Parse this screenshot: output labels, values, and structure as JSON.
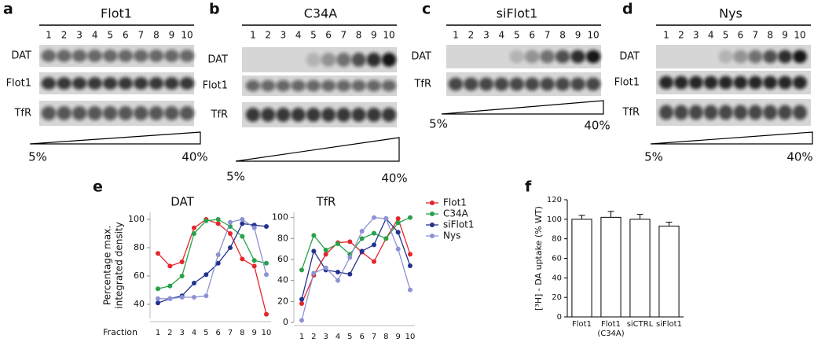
{
  "blots": [
    {
      "letter": "a",
      "title": "Flot1",
      "lanes": [
        1,
        2,
        3,
        4,
        5,
        6,
        7,
        8,
        9,
        10
      ],
      "rows": [
        "DAT",
        "Flot1",
        "TfR"
      ],
      "gradient_start": "5%",
      "gradient_end": "40%"
    },
    {
      "letter": "b",
      "title": "C34A",
      "lanes": [
        1,
        2,
        3,
        4,
        5,
        6,
        7,
        8,
        9,
        10
      ],
      "rows": [
        "DAT",
        "Flot1",
        "TfR"
      ],
      "gradient_start": "5%",
      "gradient_end": "40%"
    },
    {
      "letter": "c",
      "title": "siFlot1",
      "lanes": [
        1,
        2,
        3,
        4,
        5,
        6,
        7,
        8,
        9,
        10
      ],
      "rows": [
        "DAT",
        "TfR"
      ],
      "gradient_start": "5%",
      "gradient_end": "40%"
    },
    {
      "letter": "d",
      "title": "Nys",
      "lanes": [
        1,
        2,
        3,
        4,
        5,
        6,
        7,
        8,
        9,
        10
      ],
      "rows": [
        "DAT",
        "Flot1",
        "TfR"
      ],
      "gradient_start": "5%",
      "gradient_end": "40%"
    }
  ],
  "chart_data": [
    {
      "type": "line",
      "panel": "e",
      "title": "DAT",
      "x_label": "Fraction",
      "y_label": [
        "Percentage max.",
        "integrated density"
      ],
      "categories": [
        1,
        2,
        3,
        4,
        5,
        6,
        7,
        8,
        9,
        10
      ],
      "ylim": [
        30,
        105
      ],
      "yticks": [
        40,
        60,
        80,
        100
      ],
      "series": [
        {
          "name": "Flot1",
          "color": "#e3262b",
          "values": [
            76,
            67,
            70,
            94,
            100,
            97,
            90,
            72,
            67,
            33
          ]
        },
        {
          "name": "C34A",
          "color": "#27a24a",
          "values": [
            51,
            53,
            60,
            90,
            99,
            100,
            95,
            88,
            71,
            69
          ]
        },
        {
          "name": "siFlot1",
          "color": "#23328f",
          "values": [
            41,
            44,
            46,
            55,
            61,
            69,
            80,
            97,
            96,
            95
          ]
        },
        {
          "name": "Nys",
          "color": "#8d92d2",
          "values": [
            44,
            44,
            45,
            45,
            46,
            75,
            98,
            100,
            94,
            61
          ]
        }
      ]
    },
    {
      "type": "line",
      "title": "TfR",
      "categories": [
        1,
        2,
        3,
        4,
        5,
        6,
        7,
        8,
        9,
        10
      ],
      "ylim": [
        0,
        105
      ],
      "yticks": [
        0,
        20,
        40,
        60,
        80,
        100
      ],
      "legend": "right",
      "series": [
        {
          "name": "Flot1",
          "color": "#e3262b",
          "values": [
            18,
            45,
            65,
            76,
            77,
            67,
            58,
            80,
            99,
            65
          ]
        },
        {
          "name": "C34A",
          "color": "#27a24a",
          "values": [
            50,
            83,
            69,
            75,
            65,
            80,
            85,
            80,
            95,
            100
          ]
        },
        {
          "name": "siFlot1",
          "color": "#23328f",
          "values": [
            22,
            68,
            50,
            48,
            46,
            68,
            74,
            99,
            86,
            54
          ]
        },
        {
          "name": "Nys",
          "color": "#8d92d2",
          "values": [
            2,
            47,
            52,
            40,
            62,
            87,
            100,
            99,
            70,
            31
          ]
        }
      ]
    },
    {
      "type": "bar",
      "panel": "f",
      "y_label": "[³H] - DA uptake (% WT)",
      "categories": [
        "Flot1",
        "Flot1 (C34A)",
        "siCTRL",
        "siFlot1"
      ],
      "values": [
        100,
        102,
        100,
        93
      ],
      "errors": [
        4,
        6,
        5,
        4
      ],
      "color": "#ffffff",
      "ylim": [
        0,
        120
      ],
      "yticks": [
        0,
        20,
        40,
        60,
        80,
        100,
        120
      ]
    }
  ]
}
